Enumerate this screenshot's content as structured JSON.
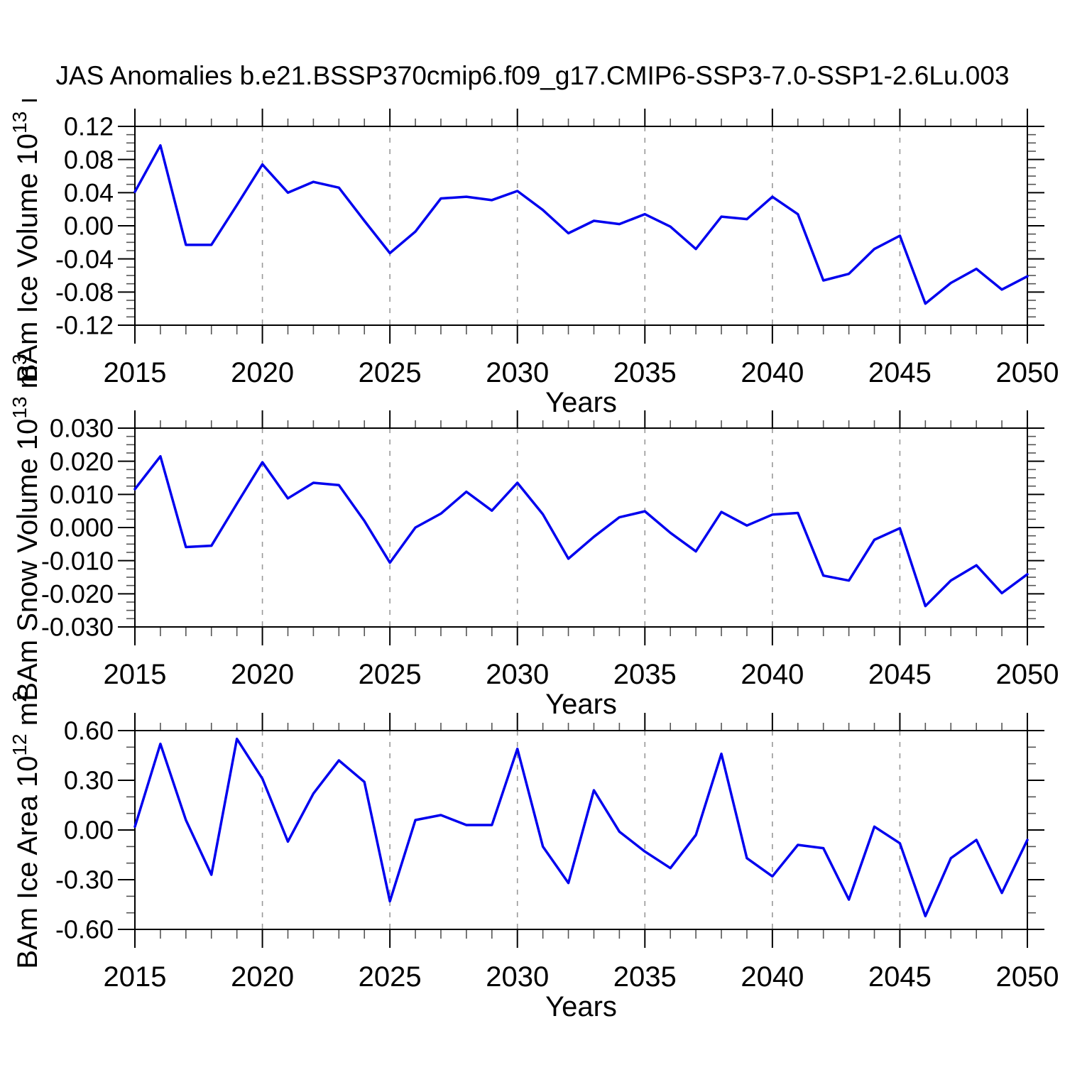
{
  "title": "JAS Anomalies b.e21.BSSP370cmip6.f09_g17.CMIP6-SSP3-7.0-SSP1-2.6Lu.003",
  "figure": {
    "xlabel": "Years"
  },
  "style": {
    "line_color": "#0000ee",
    "grid_color": "#999999",
    "axis_color": "#000000",
    "minor_tick_color": "#555555",
    "background": "#ffffff"
  },
  "x_axis": {
    "start": 2015,
    "end": 2050,
    "major_step": 5,
    "minor_step": 1,
    "grid_years": [
      2020,
      2025,
      2030,
      2035,
      2040,
      2045
    ],
    "tick_labels": [
      "2015",
      "2020",
      "2025",
      "2030",
      "2035",
      "2040",
      "2045",
      "2050"
    ],
    "years": [
      2015,
      2016,
      2017,
      2018,
      2019,
      2020,
      2021,
      2022,
      2023,
      2024,
      2025,
      2026,
      2027,
      2028,
      2029,
      2030,
      2031,
      2032,
      2033,
      2034,
      2035,
      2036,
      2037,
      2038,
      2039,
      2040,
      2041,
      2042,
      2043,
      2044,
      2045,
      2046,
      2047,
      2048,
      2049,
      2050
    ]
  },
  "chart_data": [
    {
      "type": "line",
      "name": "bam-ice-volume",
      "ylabel_plain": "BAm Ice Volume 10^13 m^3",
      "ylabel_segments": [
        {
          "t": "BAm Ice Volume 10"
        },
        {
          "t": "13",
          "sup": true
        },
        {
          "t": " m"
        },
        {
          "t": "3",
          "sup": true
        }
      ],
      "ylim": [
        -0.12,
        0.12
      ],
      "ymajor_step": 0.04,
      "yminor_step": 0.01,
      "ytick_labels": [
        "0.12",
        "0.08",
        "0.04",
        "0.00",
        "-0.04",
        "-0.08",
        "-0.12"
      ],
      "values": [
        0.041,
        0.097,
        -0.023,
        -0.023,
        0.025,
        0.074,
        0.04,
        0.053,
        0.046,
        0.006,
        -0.033,
        -0.007,
        0.033,
        0.035,
        0.031,
        0.042,
        0.019,
        -0.009,
        0.006,
        0.002,
        0.014,
        -0.001,
        -0.028,
        0.011,
        0.008,
        0.035,
        0.014,
        -0.066,
        -0.058,
        -0.028,
        -0.012,
        -0.094,
        -0.069,
        -0.052,
        -0.077,
        -0.061
      ]
    },
    {
      "type": "line",
      "name": "bam-snow-volume",
      "ylabel_plain": "BAm Snow Volume 10^13 m^3",
      "ylabel_segments": [
        {
          "t": "BAm Snow Volume 10"
        },
        {
          "t": "13",
          "sup": true
        },
        {
          "t": " m"
        },
        {
          "t": "3",
          "sup": true
        }
      ],
      "ylim": [
        -0.03,
        0.03
      ],
      "ymajor_step": 0.01,
      "yminor_step": 0.0025,
      "ytick_labels": [
        "0.030",
        "0.020",
        "0.010",
        "0.000",
        "-0.010",
        "-0.020",
        "-0.030"
      ],
      "values": [
        0.0116,
        0.0215,
        -0.0059,
        -0.0055,
        0.0072,
        0.0197,
        0.0088,
        0.0135,
        0.0128,
        0.002,
        -0.0106,
        0.0,
        0.0042,
        0.0108,
        0.0051,
        0.0135,
        0.004,
        -0.0094,
        -0.0028,
        0.0031,
        0.0049,
        -0.0016,
        -0.0072,
        0.0047,
        0.0006,
        0.0039,
        0.0044,
        -0.0145,
        -0.016,
        -0.0037,
        -0.0002,
        -0.0237,
        -0.016,
        -0.0114,
        -0.0198,
        -0.0141
      ]
    },
    {
      "type": "line",
      "name": "bam-ice-area",
      "ylabel_plain": "BAm Ice Area 10^12 m^2",
      "ylabel_segments": [
        {
          "t": "BAm Ice Area 10"
        },
        {
          "t": "12",
          "sup": true
        },
        {
          "t": " m"
        },
        {
          "t": "2",
          "sup": true
        }
      ],
      "ylim": [
        -0.6,
        0.6
      ],
      "ymajor_step": 0.3,
      "yminor_step": 0.1,
      "ytick_labels": [
        "0.60",
        "0.30",
        "0.00",
        "-0.30",
        "-0.60"
      ],
      "values": [
        0.02,
        0.52,
        0.06,
        -0.27,
        0.55,
        0.31,
        -0.07,
        0.22,
        0.42,
        0.29,
        -0.43,
        0.06,
        0.09,
        0.03,
        0.03,
        0.49,
        -0.1,
        -0.32,
        0.24,
        -0.01,
        -0.13,
        -0.23,
        -0.03,
        0.46,
        -0.17,
        -0.28,
        -0.09,
        -0.11,
        -0.42,
        0.02,
        -0.08,
        -0.52,
        -0.17,
        -0.06,
        -0.38,
        -0.06
      ]
    }
  ]
}
